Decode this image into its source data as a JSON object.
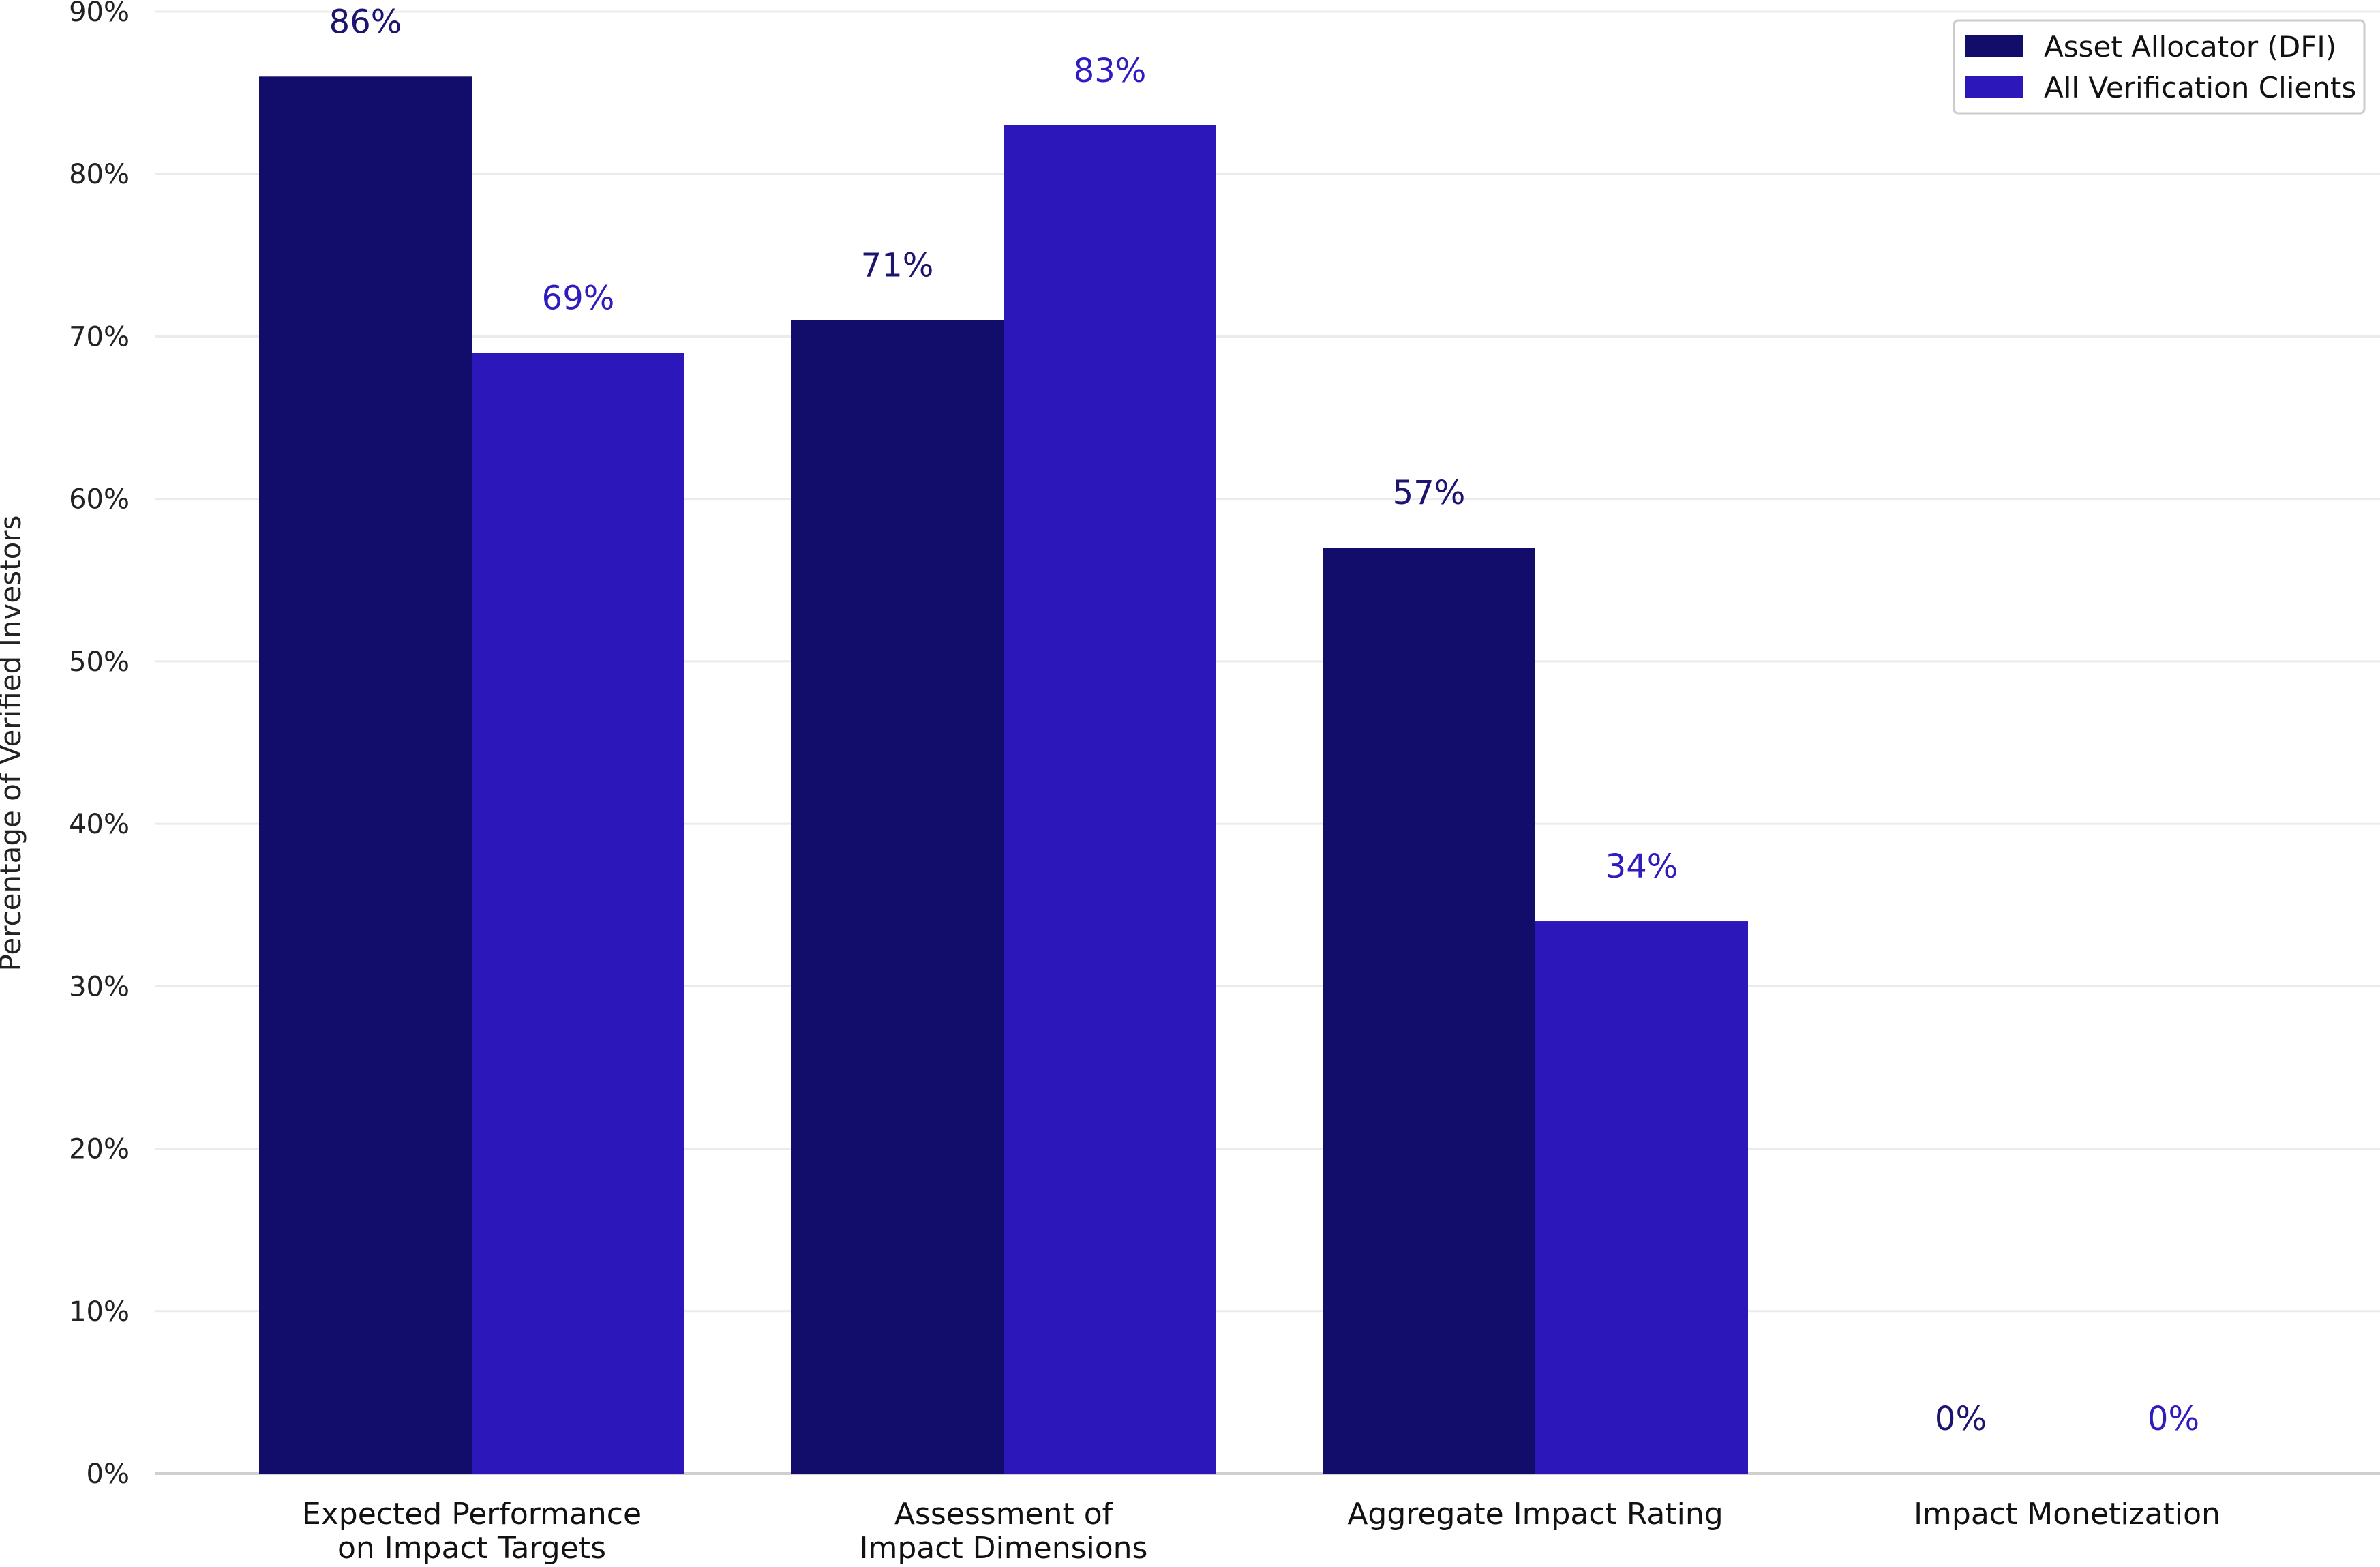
{
  "chart_data": {
    "type": "bar",
    "title": "",
    "xlabel": "",
    "ylabel": "Percentage of Verified Investors",
    "ylim": [
      0,
      90
    ],
    "yticks": [
      "0%",
      "10%",
      "20%",
      "30%",
      "40%",
      "50%",
      "60%",
      "70%",
      "80%",
      "90%"
    ],
    "ytick_values": [
      0,
      10,
      20,
      30,
      40,
      50,
      60,
      70,
      80,
      90
    ],
    "categories": [
      [
        "Expected Performance",
        "on Impact Targets"
      ],
      [
        "Assessment of",
        "Impact Dimensions"
      ],
      [
        "Aggregate Impact Rating"
      ],
      [
        "Impact Monetization"
      ]
    ],
    "series": [
      {
        "name": "Asset Allocator (DFI)",
        "color": "#120d6b",
        "label_color": "#1c1570",
        "values": [
          86,
          71,
          57,
          0
        ],
        "labels": [
          "86%",
          "71%",
          "57%",
          "0%"
        ]
      },
      {
        "name": "All Verification Clients",
        "color": "#2c17bb",
        "label_color": "#2e1cc0",
        "values": [
          69,
          83,
          34,
          0
        ],
        "labels": [
          "69%",
          "83%",
          "34%",
          "0%"
        ]
      }
    ],
    "grid": true,
    "legend_position": "top-right"
  }
}
